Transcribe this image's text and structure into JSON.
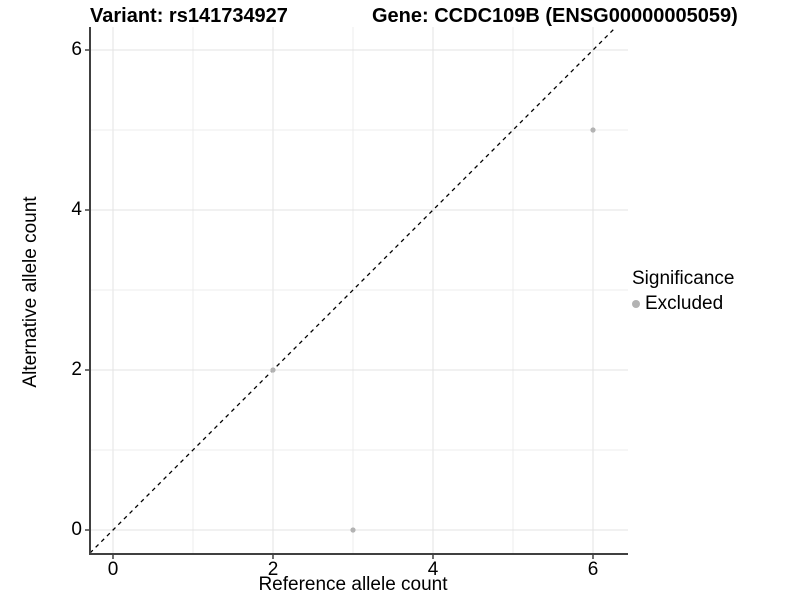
{
  "titles": {
    "left": "Variant: rs141734927",
    "right": "Gene: CCDC109B (ENSG00000005059)"
  },
  "chart_data": {
    "type": "scatter",
    "xlabel": "Reference allele count",
    "ylabel": "Alternative allele count",
    "xlim": [
      -0.3,
      6.45
    ],
    "ylim": [
      -0.3,
      6.3
    ],
    "x_ticks": [
      0,
      2,
      4,
      6
    ],
    "y_ticks": [
      0,
      2,
      4,
      6
    ],
    "x_gridlines": [
      0,
      1,
      2,
      3,
      4,
      5,
      6
    ],
    "y_gridlines": [
      0,
      1,
      2,
      3,
      4,
      5,
      6
    ],
    "grid": true,
    "identity_line": {
      "slope": 1,
      "intercept": 0,
      "style": "dashed",
      "color": "#000000"
    },
    "series": [
      {
        "name": "Excluded",
        "color": "#b3b3b3",
        "points": [
          [
            2,
            2
          ],
          [
            3,
            0
          ],
          [
            6,
            5
          ]
        ]
      }
    ],
    "legend": {
      "title": "Significance",
      "position": "right",
      "items": [
        {
          "label": "Excluded",
          "color": "#b3b3b3",
          "marker": "circle"
        }
      ]
    }
  },
  "colors": {
    "background": "#ffffff",
    "axis_line": "#404040",
    "grid_major": "#e3e3e3",
    "grid_minor": "#ececec",
    "text": "#000000",
    "point": "#b3b3b3"
  }
}
